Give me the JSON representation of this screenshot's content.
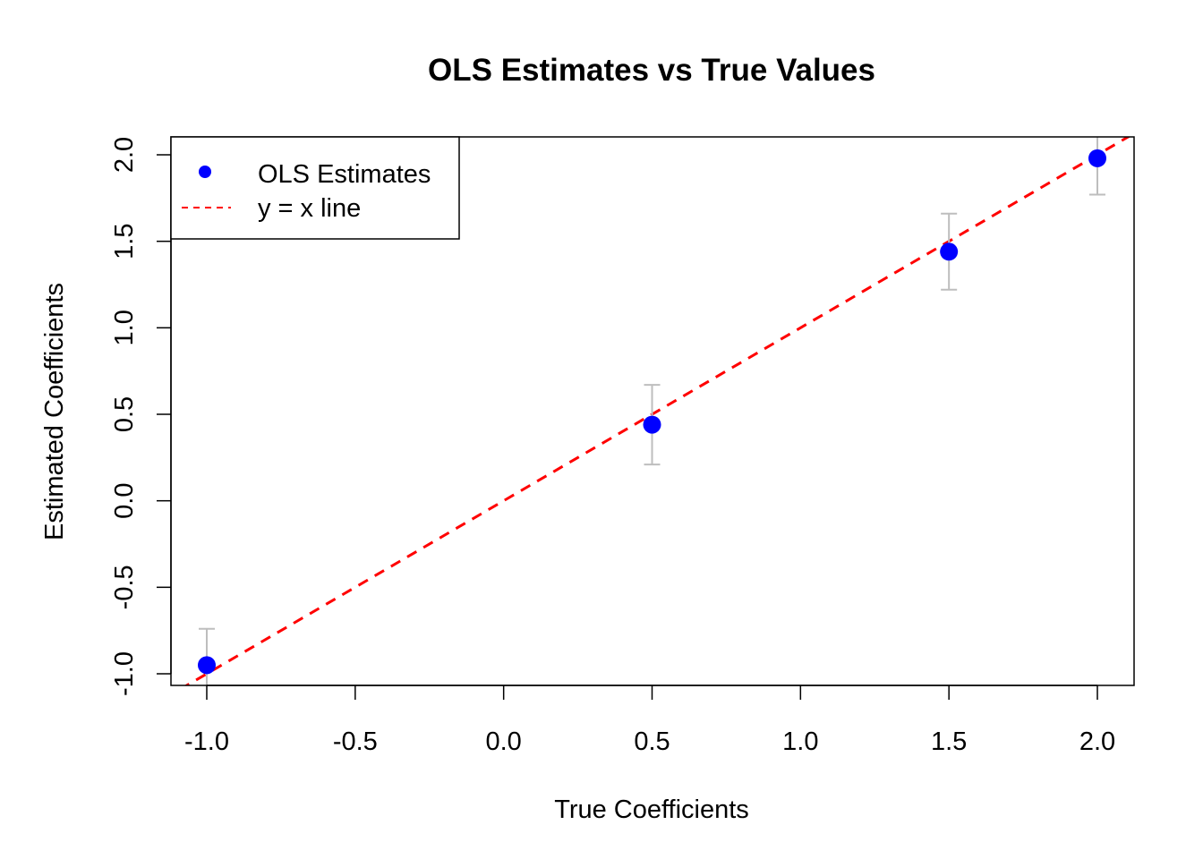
{
  "chart_data": {
    "type": "scatter",
    "title": "OLS Estimates vs True Values",
    "xlabel": "True Coefficients",
    "ylabel": "Estimated Coefficients",
    "xlim": [
      -1.0,
      2.0
    ],
    "ylim": [
      -1.0,
      2.0
    ],
    "x_ticks": [
      "-1.0",
      "-0.5",
      "0.0",
      "0.5",
      "1.0",
      "1.5",
      "2.0"
    ],
    "y_ticks": [
      "-1.0",
      "-0.5",
      "0.0",
      "0.5",
      "1.0",
      "1.5",
      "2.0"
    ],
    "series": [
      {
        "name": "OLS Estimates",
        "color": "#0000FF",
        "points": [
          {
            "x": -1.0,
            "y": -0.95,
            "lo": -1.16,
            "hi": -0.74
          },
          {
            "x": 0.5,
            "y": 0.44,
            "lo": 0.21,
            "hi": 0.67
          },
          {
            "x": 1.5,
            "y": 1.44,
            "lo": 1.22,
            "hi": 1.66
          },
          {
            "x": 2.0,
            "y": 1.98,
            "lo": 1.77,
            "hi": 2.19
          }
        ]
      }
    ],
    "reference_line": {
      "name": "y = x line",
      "color": "#FF0000",
      "style": "dashed",
      "slope": 1,
      "intercept": 0
    },
    "error_bar_color": "#BEBEBE",
    "legend": {
      "position": "top-left",
      "entries": [
        {
          "label": "OLS Estimates",
          "kind": "point"
        },
        {
          "label": "y = x line",
          "kind": "dashed-line"
        }
      ]
    },
    "grid": false
  }
}
